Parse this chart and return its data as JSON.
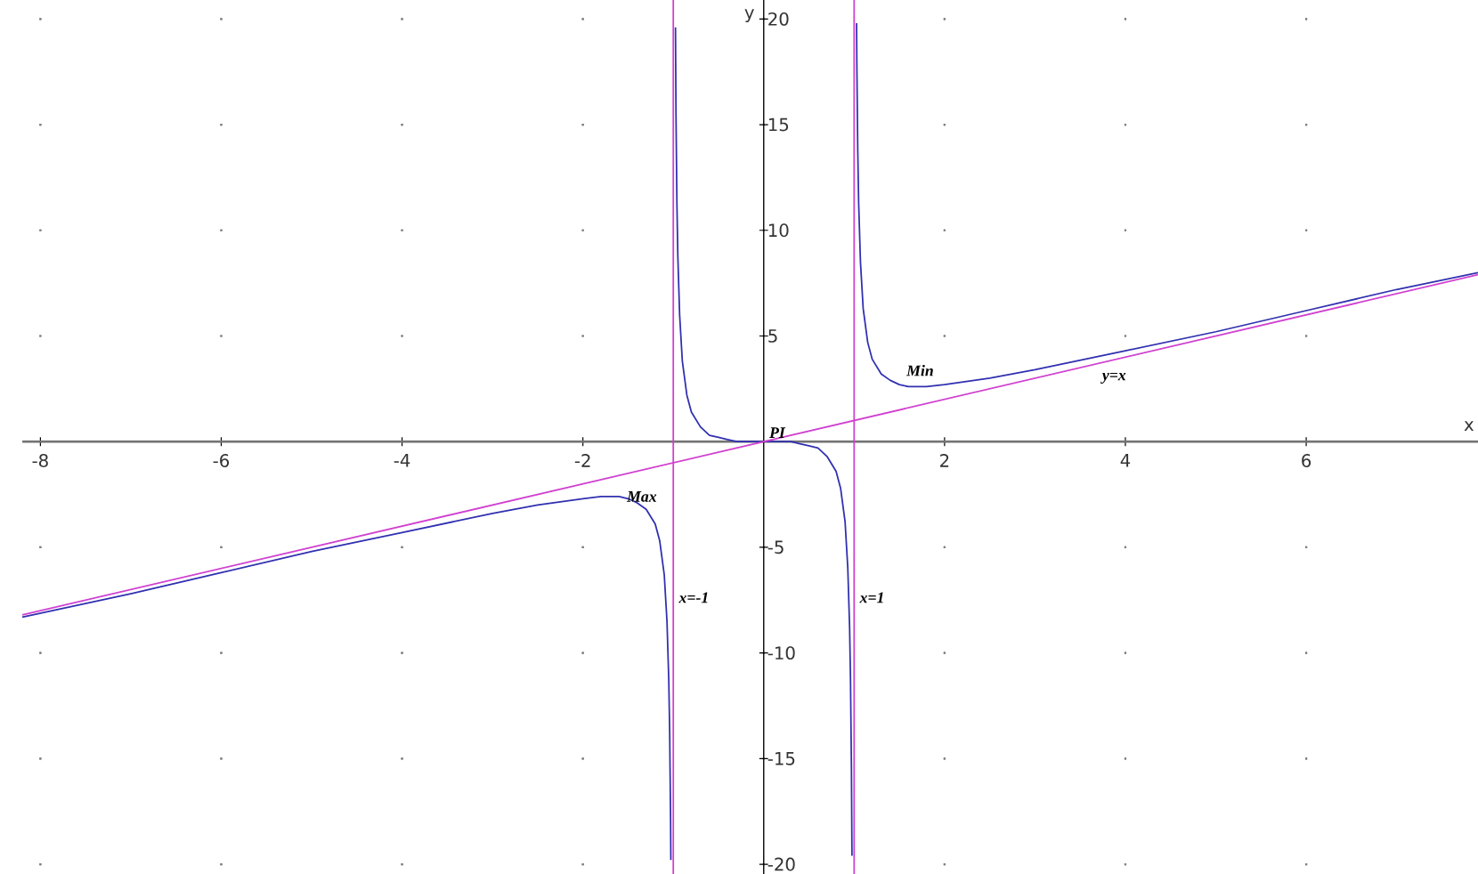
{
  "chart_data": {
    "type": "line",
    "xlabel": "x",
    "ylabel": "y",
    "xlim": [
      -8.2,
      7.9
    ],
    "ylim": [
      -20.5,
      20.9
    ],
    "xticks": [
      -8,
      -6,
      -4,
      -2,
      2,
      4,
      6
    ],
    "yticks": [
      -20,
      -15,
      -10,
      -5,
      5,
      10,
      15,
      20
    ],
    "grid": true,
    "series": [
      {
        "color": "#3030b0",
        "x": [
          -8.2,
          -7,
          -6,
          -5,
          -4,
          -3,
          -2.5,
          -2,
          -1.8,
          -1.73,
          -1.6,
          -1.5,
          -1.4,
          -1.3,
          -1.2,
          -1.15,
          -1.1,
          -1.07,
          -1.05,
          -1.04,
          -1.03,
          -1.027,
          -1,
          -0.976,
          -0.97,
          -0.96,
          -0.95,
          -0.93,
          -0.9,
          -0.85,
          -0.8,
          -0.7,
          -0.6,
          -0.5,
          -0.4,
          -0.3,
          -0.2,
          0,
          0.2,
          0.3,
          0.4,
          0.5,
          0.6,
          0.7,
          0.8,
          0.85,
          0.9,
          0.93,
          0.95,
          0.96,
          0.97,
          0.976,
          1,
          1.027,
          1.03,
          1.04,
          1.05,
          1.07,
          1.1,
          1.15,
          1.2,
          1.3,
          1.4,
          1.5,
          1.6,
          1.73,
          1.8,
          2,
          2.5,
          3,
          4,
          5,
          6,
          7,
          7.9
        ],
        "values": [
          -8.3,
          -7.2,
          -6.2,
          -5.2,
          -4.3,
          -3.4,
          -3.0,
          -2.7,
          -2.6,
          -2.6,
          -2.6,
          -2.7,
          -2.9,
          -3.2,
          -3.9,
          -4.7,
          -6.3,
          -8.5,
          -11.3,
          -13.8,
          -17.9,
          -19.8,
          null,
          19.6,
          15.4,
          11.3,
          8.8,
          6.0,
          3.8,
          2.2,
          1.4,
          0.7,
          0.3,
          0.2,
          0.1,
          0.0,
          0.0,
          0,
          0.0,
          0.0,
          -0.1,
          -0.2,
          -0.3,
          -0.7,
          -1.4,
          -2.2,
          -3.8,
          -6.0,
          -8.8,
          -11.3,
          -15.4,
          -19.6,
          null,
          19.8,
          17.9,
          13.8,
          11.3,
          8.5,
          6.3,
          4.7,
          3.9,
          3.2,
          2.9,
          2.7,
          2.6,
          2.6,
          2.6,
          2.7,
          3.0,
          3.4,
          4.3,
          5.2,
          6.2,
          7.2,
          8.0
        ]
      },
      {
        "name": "y=x",
        "color": "#d040d0",
        "x": [
          -8.2,
          7.9
        ],
        "values": [
          -8.2,
          7.9
        ]
      }
    ],
    "ref_lines": [
      {
        "axis": "x",
        "value": -1,
        "label": "x=-1",
        "color": "#d040d0"
      },
      {
        "axis": "x",
        "value": 1,
        "label": "x=1",
        "color": "#d040d0"
      }
    ],
    "annotations": [
      {
        "text": "Max",
        "x": -1.73,
        "y": -2.6
      },
      {
        "text": "Min",
        "x": 1.73,
        "y": 2.6
      },
      {
        "text": "PI",
        "x": 0,
        "y": 0
      }
    ]
  }
}
